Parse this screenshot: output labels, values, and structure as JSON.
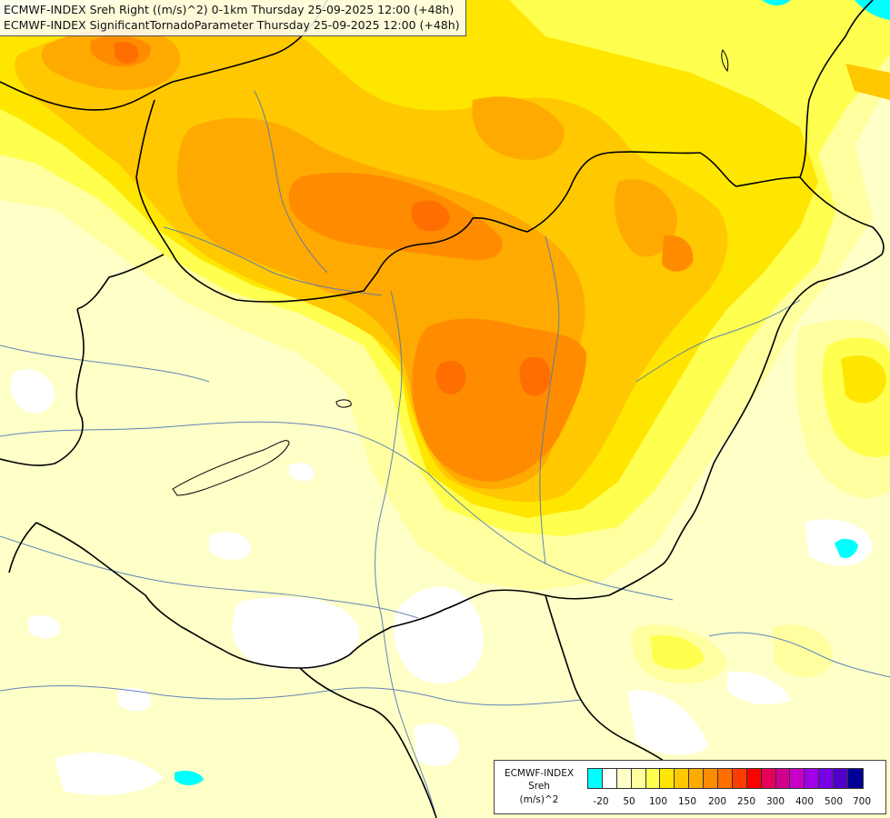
{
  "map": {
    "title_line_1": "ECMWF-INDEX Sreh Right ((m/s)^2) 0-1km Thursday 25-09-2025 12:00 (+48h)",
    "title_line_2": "ECMWF-INDEX SignificantTornadoParameter Thursday 25-09-2025 12:00 (+48h)",
    "colors": {
      "background": "#ffffc8",
      "bin_0": "#ffffff",
      "bin_25": "#ffffa0",
      "bin_50": "#ffff50",
      "bin_75": "#ffe600",
      "bin_100": "#ffc800",
      "bin_125": "#ffaa00",
      "bin_150": "#ff8c00",
      "bin_175": "#ff6e00",
      "negative": "#00ffff",
      "border_line": "#000000",
      "river_line": "#5078b4"
    }
  },
  "legend": {
    "line_1": "ECMWF-INDEX",
    "line_2": "Sreh",
    "line_3": "(m/s)^2",
    "swatch_colors": [
      "#00ffff",
      "#ffffff",
      "#ffffc8",
      "#ffffa0",
      "#ffff50",
      "#ffe600",
      "#ffc800",
      "#ffaa00",
      "#ff8c00",
      "#ff6e00",
      "#ff3c00",
      "#ff0000",
      "#e6005a",
      "#d2008c",
      "#c800c8",
      "#a000e6",
      "#7800e6",
      "#5000c8",
      "#000096"
    ],
    "ticks": [
      "-20",
      "50",
      "100",
      "150",
      "200",
      "250",
      "300",
      "400",
      "500",
      "700"
    ]
  }
}
